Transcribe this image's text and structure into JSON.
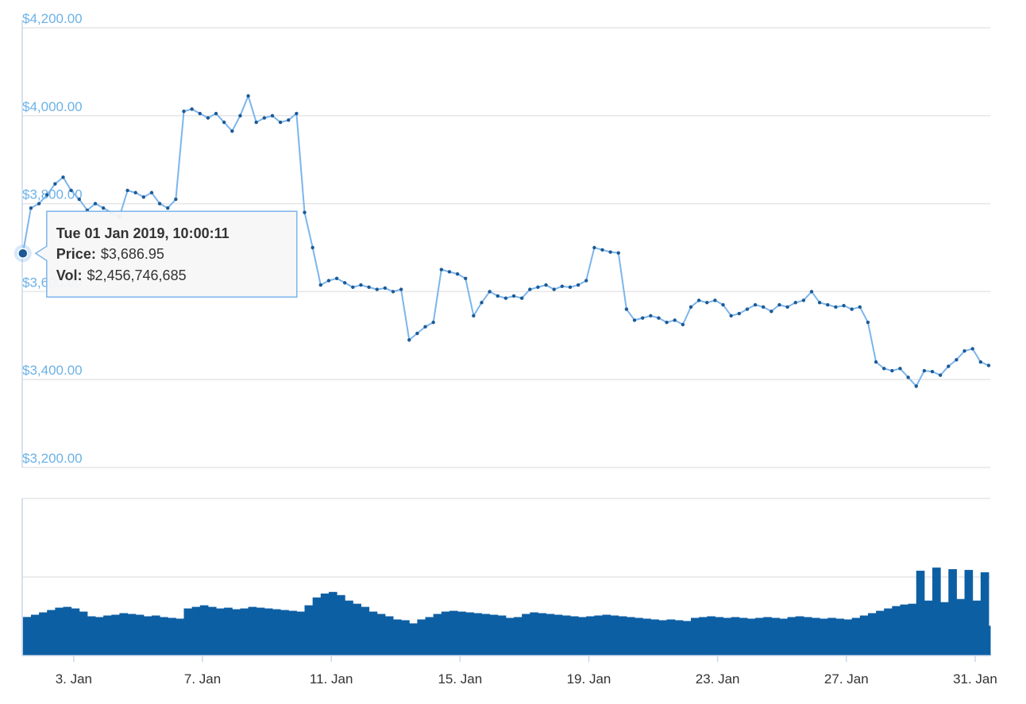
{
  "chart_data": [
    {
      "type": "line",
      "x": [
        1.42,
        1.67,
        1.92,
        2.17,
        2.42,
        2.67,
        2.92,
        3.17,
        3.42,
        3.67,
        3.92,
        4.17,
        4.42,
        4.67,
        4.92,
        5.17,
        5.42,
        5.67,
        5.92,
        6.17,
        6.42,
        6.67,
        6.92,
        7.17,
        7.42,
        7.67,
        7.92,
        8.17,
        8.42,
        8.67,
        8.92,
        9.17,
        9.42,
        9.67,
        9.92,
        10.17,
        10.42,
        10.67,
        10.92,
        11.17,
        11.42,
        11.67,
        11.92,
        12.17,
        12.42,
        12.67,
        12.92,
        13.17,
        13.42,
        13.67,
        13.92,
        14.17,
        14.42,
        14.67,
        14.92,
        15.17,
        15.42,
        15.67,
        15.92,
        16.17,
        16.42,
        16.67,
        16.92,
        17.17,
        17.42,
        17.67,
        17.92,
        18.17,
        18.42,
        18.67,
        18.92,
        19.17,
        19.42,
        19.67,
        19.92,
        20.17,
        20.42,
        20.67,
        20.92,
        21.17,
        21.42,
        21.67,
        21.92,
        22.17,
        22.42,
        22.67,
        22.92,
        23.17,
        23.42,
        23.67,
        23.92,
        24.17,
        24.42,
        24.67,
        24.92,
        25.17,
        25.42,
        25.67,
        25.92,
        26.17,
        26.42,
        26.67,
        26.92,
        27.17,
        27.42,
        27.67,
        27.92,
        28.17,
        28.42,
        28.67,
        28.92,
        29.17,
        29.42,
        29.67,
        29.92,
        30.17,
        30.42,
        30.67,
        30.92,
        31.17,
        31.42
      ],
      "series": [
        {
          "name": "Price",
          "color": "#7cb5ec",
          "marker_color": "#1c5a96",
          "values": [
            3686.95,
            3790,
            3800,
            3820,
            3845,
            3860,
            3830,
            3810,
            3785,
            3800,
            3790,
            3780,
            3770,
            3830,
            3825,
            3815,
            3825,
            3800,
            3790,
            3810,
            4010,
            4015,
            4005,
            3995,
            4005,
            3985,
            3965,
            4000,
            4045,
            3985,
            3995,
            4000,
            3985,
            3990,
            4005,
            3780,
            3700,
            3615,
            3625,
            3630,
            3620,
            3610,
            3615,
            3610,
            3605,
            3608,
            3600,
            3605,
            3490,
            3505,
            3520,
            3530,
            3650,
            3645,
            3640,
            3630,
            3545,
            3575,
            3600,
            3590,
            3585,
            3590,
            3585,
            3605,
            3610,
            3615,
            3605,
            3612,
            3610,
            3615,
            3625,
            3700,
            3695,
            3690,
            3688,
            3560,
            3535,
            3540,
            3545,
            3540,
            3530,
            3535,
            3525,
            3565,
            3580,
            3575,
            3580,
            3570,
            3545,
            3550,
            3560,
            3570,
            3565,
            3555,
            3570,
            3565,
            3575,
            3580,
            3600,
            3575,
            3570,
            3565,
            3568,
            3560,
            3565,
            3530,
            3440,
            3425,
            3420,
            3425,
            3405,
            3385,
            3420,
            3418,
            3410,
            3430,
            3445,
            3465,
            3470,
            3440,
            3432
          ]
        }
      ],
      "xlim": [
        1.4,
        31.47
      ],
      "ylim": [
        3200,
        4200
      ],
      "yticks": [
        {
          "value": 3200,
          "label": "$3,200.00"
        },
        {
          "value": 3400,
          "label": "$3,400.00"
        },
        {
          "value": 3600,
          "label": "$3,600.00"
        },
        {
          "value": 3800,
          "label": "$3,800.00"
        },
        {
          "value": 4000,
          "label": "$4,000.00"
        },
        {
          "value": 4200,
          "label": "$4,200.00"
        }
      ],
      "grid": true,
      "tooltip": {
        "title": "Tue 01 Jan 2019, 10:00:11",
        "price_label": "Price:",
        "price": "$3,686.95",
        "vol_label": "Vol:",
        "vol": "$2,456,746,685"
      }
    },
    {
      "type": "bar",
      "color": "#0d5fa4",
      "values": [
        2456746685,
        2600000000,
        2750000000,
        2900000000,
        3050000000,
        3100000000,
        3000000000,
        2800000000,
        2500000000,
        2450000000,
        2550000000,
        2600000000,
        2700000000,
        2650000000,
        2600000000,
        2500000000,
        2550000000,
        2450000000,
        2400000000,
        2350000000,
        3000000000,
        3100000000,
        3200000000,
        3100000000,
        3000000000,
        3050000000,
        2950000000,
        3000000000,
        3100000000,
        3050000000,
        3000000000,
        2950000000,
        2900000000,
        2850000000,
        2800000000,
        3200000000,
        3700000000,
        3950000000,
        4050000000,
        3850000000,
        3500000000,
        3300000000,
        3100000000,
        2800000000,
        2650000000,
        2500000000,
        2300000000,
        2250000000,
        2050000000,
        2300000000,
        2450000000,
        2650000000,
        2800000000,
        2850000000,
        2800000000,
        2750000000,
        2700000000,
        2650000000,
        2600000000,
        2550000000,
        2400000000,
        2450000000,
        2650000000,
        2750000000,
        2700000000,
        2650000000,
        2600000000,
        2550000000,
        2500000000,
        2450000000,
        2500000000,
        2550000000,
        2600000000,
        2550000000,
        2500000000,
        2450000000,
        2400000000,
        2350000000,
        2300000000,
        2250000000,
        2300000000,
        2250000000,
        2200000000,
        2400000000,
        2450000000,
        2500000000,
        2450000000,
        2400000000,
        2450000000,
        2400000000,
        2350000000,
        2400000000,
        2450000000,
        2400000000,
        2350000000,
        2450000000,
        2500000000,
        2450000000,
        2400000000,
        2350000000,
        2400000000,
        2350000000,
        2300000000,
        2400000000,
        2550000000,
        2700000000,
        2850000000,
        3000000000,
        3150000000,
        3250000000,
        3300000000,
        5400000000,
        3500000000,
        5600000000,
        3400000000,
        5500000000,
        3600000000,
        5450000000,
        3500000000,
        5300000000,
        1900000000
      ],
      "ylim": [
        0,
        10000000000
      ],
      "yticks": [
        5000000000,
        10000000000
      ],
      "grid": true,
      "xticks": [
        {
          "value": 3,
          "label": "3. Jan"
        },
        {
          "value": 7,
          "label": "7. Jan"
        },
        {
          "value": 11,
          "label": "11. Jan"
        },
        {
          "value": 15,
          "label": "15. Jan"
        },
        {
          "value": 19,
          "label": "19. Jan"
        },
        {
          "value": 23,
          "label": "23. Jan"
        },
        {
          "value": 27,
          "label": "27. Jan"
        },
        {
          "value": 31,
          "label": "31. Jan"
        }
      ]
    }
  ]
}
